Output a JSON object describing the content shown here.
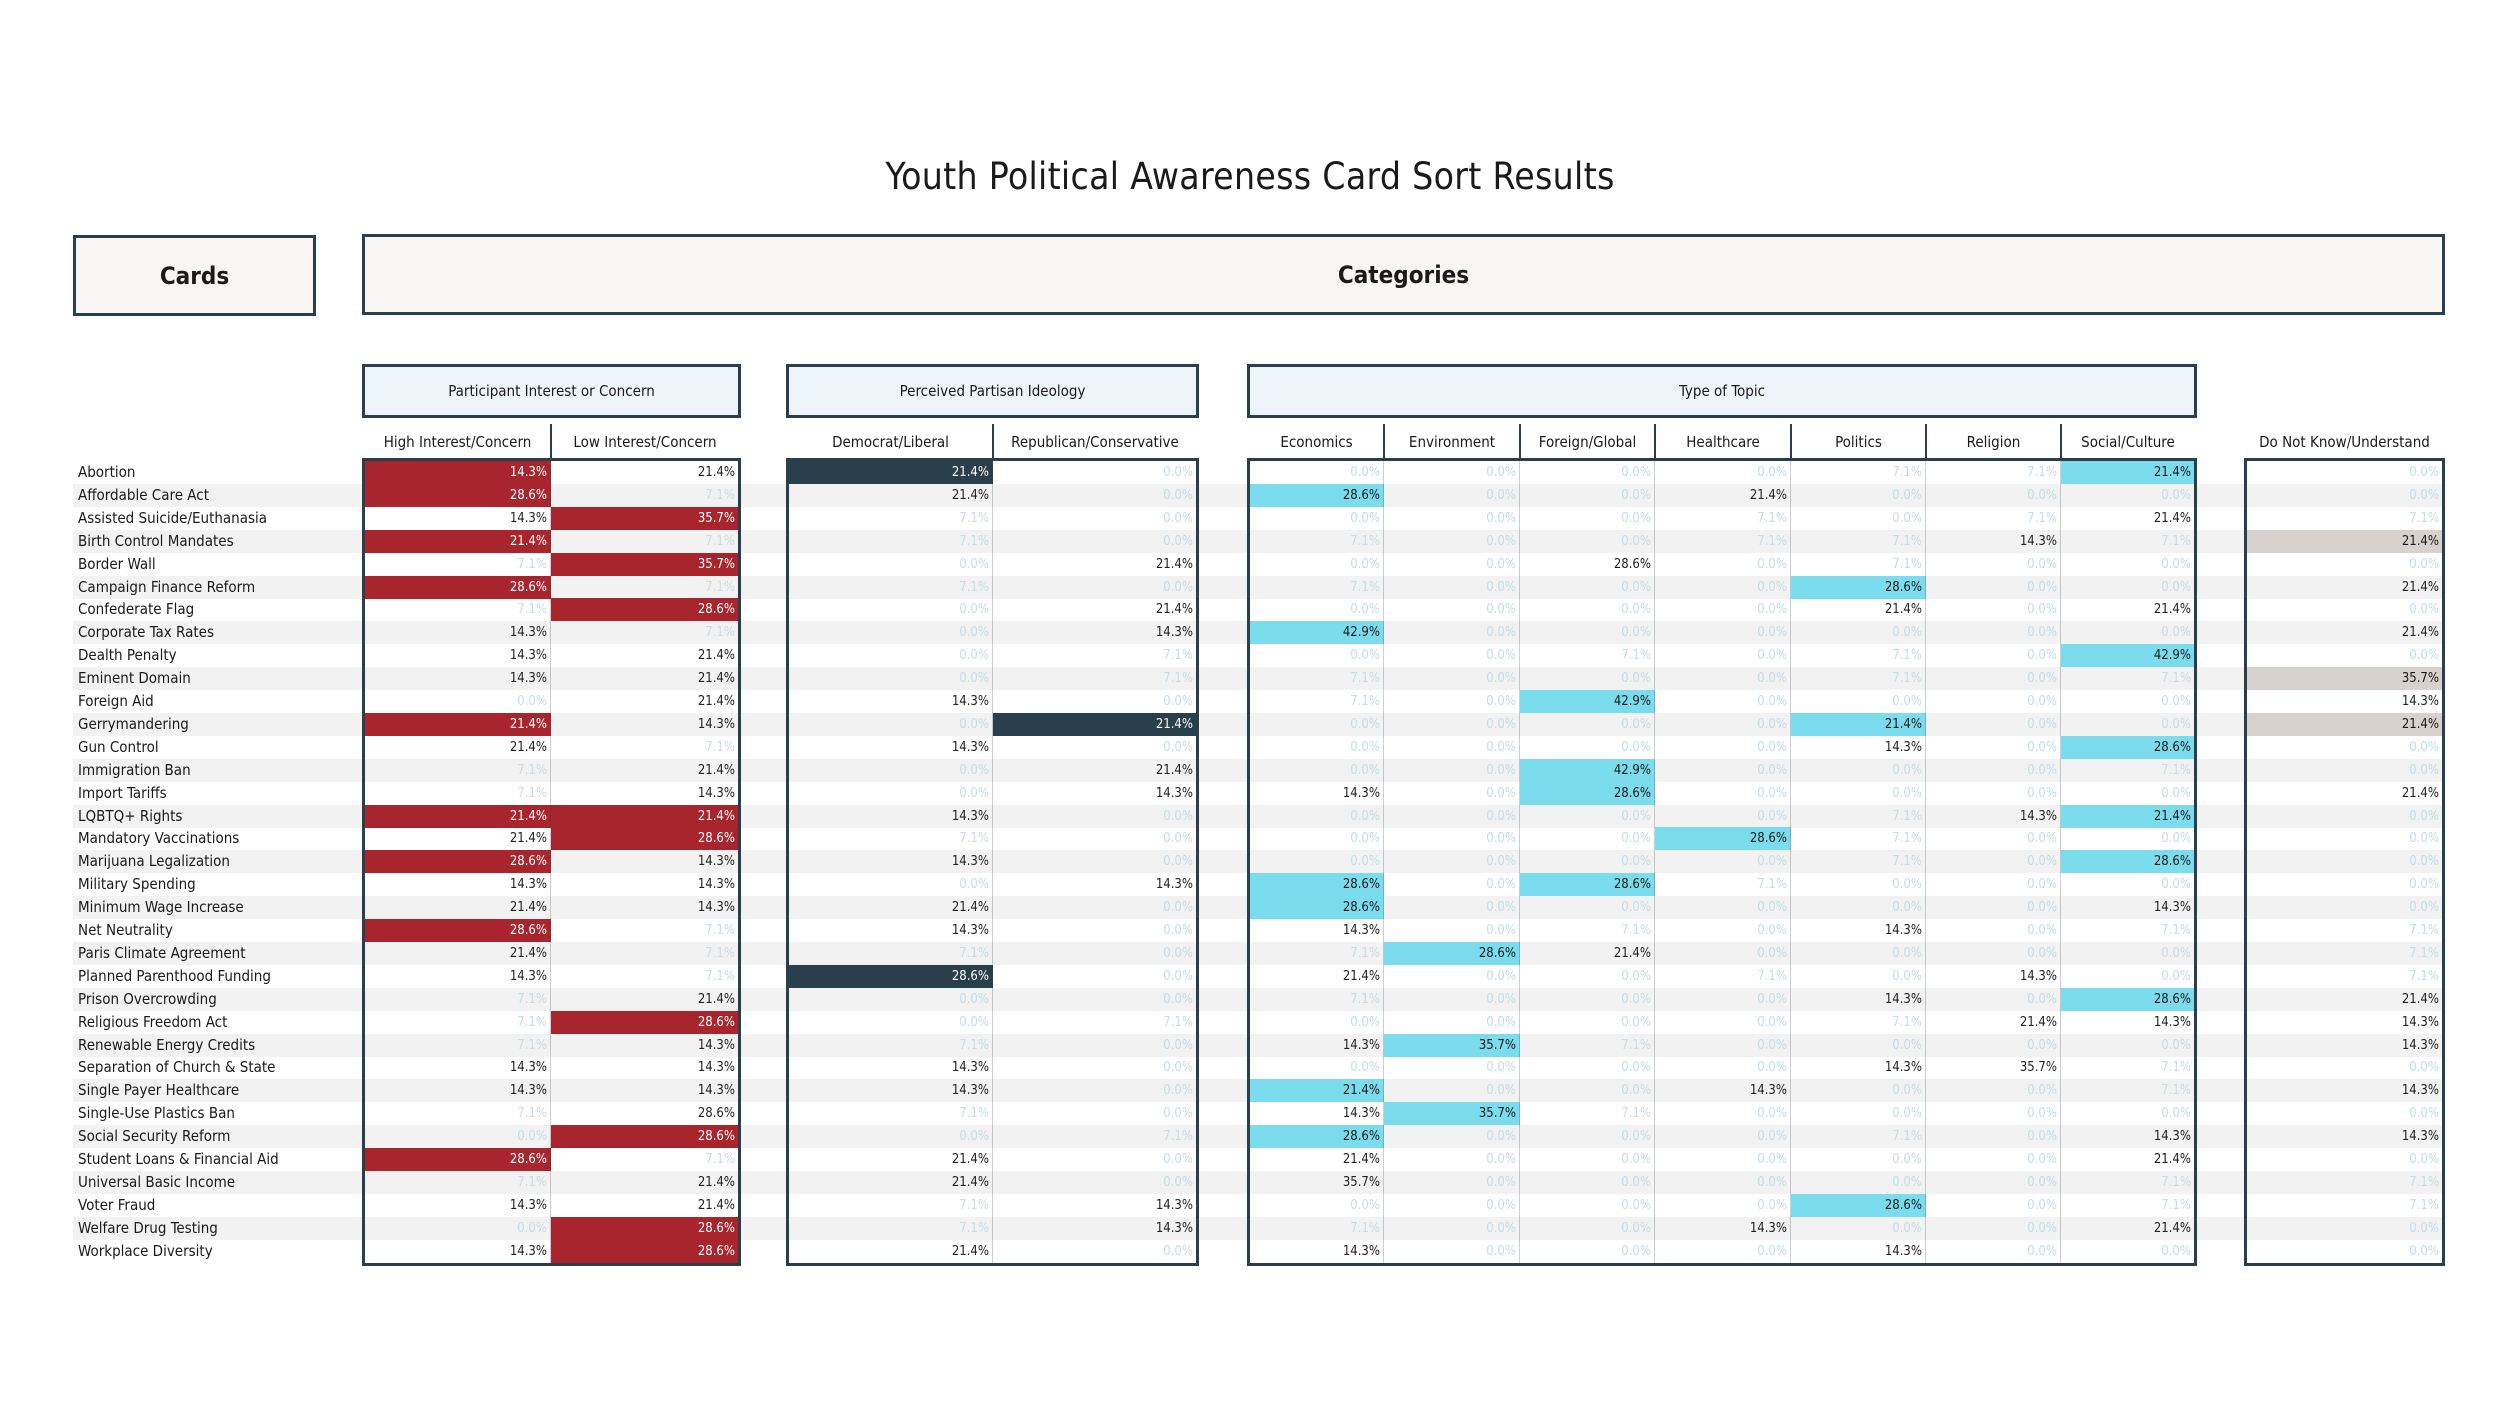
{
  "title": "Youth Political Awareness Card Sort Results",
  "headers": {
    "cards": "Cards",
    "categories": "Categories"
  },
  "colors": {
    "interest": "#a8252e",
    "ideology": "#2a3f4c",
    "topic": "#7adcec",
    "dontknow": "#d8d2ce",
    "frame": "#2a3f4c"
  },
  "chart_data": {
    "type": "table",
    "groups": [
      {
        "name": "Participant Interest or Concern",
        "columns": [
          "High Interest/Concern",
          "Low Interest/Concern"
        ]
      },
      {
        "name": "Perceived Partisan Ideology",
        "columns": [
          "Democrat/Liberal",
          "Republican/Conservative"
        ]
      },
      {
        "name": "Type of Topic",
        "columns": [
          "Economics",
          "Environment",
          "Foreign/Global",
          "Healthcare",
          "Politics",
          "Religion",
          "Social/Culture"
        ]
      },
      {
        "name": "",
        "columns": [
          "Do Not Know/Understand"
        ]
      }
    ],
    "cards": [
      "Abortion",
      "Affordable Care Act",
      "Assisted Suicide/Euthanasia",
      "Birth Control Mandates",
      "Border Wall",
      "Campaign Finance Reform",
      "Confederate Flag",
      "Corporate Tax Rates",
      "Dealth Penalty",
      "Eminent Domain",
      "Foreign Aid",
      "Gerrymandering",
      "Gun Control",
      "Immigration Ban",
      "Import Tariffs",
      "LQBTQ+ Rights",
      "Mandatory Vaccinations",
      "Marijuana Legalization",
      "Military Spending",
      "Minimum Wage Increase",
      "Net Neutrality",
      "Paris Climate Agreement",
      "Planned Parenthood Funding",
      "Prison Overcrowding",
      "Religious Freedom Act",
      "Renewable Energy Credits",
      "Separation of Church & State",
      "Single Payer Healthcare",
      "Single-Use Plastics Ban",
      "Social Security Reform",
      "Student Loans & Financial Aid",
      "Universal Basic Income",
      "Voter Fraud",
      "Welfare Drug Testing",
      "Workplace Diversity"
    ],
    "values": [
      [
        14.3,
        21.4,
        21.4,
        0,
        0,
        0,
        0,
        0,
        7.1,
        7.1,
        21.4,
        0
      ],
      [
        28.6,
        7.1,
        21.4,
        0,
        28.6,
        0,
        0,
        21.4,
        0,
        0,
        0,
        0
      ],
      [
        14.3,
        35.7,
        7.1,
        0,
        0,
        0,
        0,
        7.1,
        0,
        7.1,
        21.4,
        7.1
      ],
      [
        21.4,
        7.1,
        7.1,
        0,
        7.1,
        0,
        0,
        7.1,
        7.1,
        14.3,
        7.1,
        21.4
      ],
      [
        7.1,
        35.7,
        0,
        21.4,
        0,
        0,
        28.6,
        0,
        7.1,
        0,
        0,
        0
      ],
      [
        28.6,
        7.1,
        7.1,
        0,
        7.1,
        0,
        0,
        0,
        28.6,
        0,
        0,
        21.4
      ],
      [
        7.1,
        28.6,
        0,
        21.4,
        0,
        0,
        0,
        0,
        21.4,
        0,
        21.4,
        0
      ],
      [
        14.3,
        7.1,
        0,
        14.3,
        42.9,
        0,
        0,
        0,
        0,
        0,
        0,
        21.4
      ],
      [
        14.3,
        21.4,
        0,
        7.1,
        0,
        0,
        7.1,
        0,
        7.1,
        0,
        42.9,
        0
      ],
      [
        14.3,
        21.4,
        0,
        7.1,
        7.1,
        0,
        0,
        0,
        7.1,
        0,
        7.1,
        35.7
      ],
      [
        0,
        21.4,
        14.3,
        0,
        7.1,
        0,
        42.9,
        0,
        0,
        0,
        0,
        14.3
      ],
      [
        21.4,
        14.3,
        0,
        21.4,
        0,
        0,
        0,
        0,
        21.4,
        0,
        0,
        21.4
      ],
      [
        21.4,
        7.1,
        14.3,
        0,
        0,
        0,
        0,
        0,
        14.3,
        0,
        28.6,
        0
      ],
      [
        7.1,
        21.4,
        0,
        21.4,
        0,
        0,
        42.9,
        0,
        0,
        0,
        7.1,
        0
      ],
      [
        7.1,
        14.3,
        0,
        14.3,
        14.3,
        0,
        28.6,
        0,
        0,
        0,
        0,
        21.4
      ],
      [
        21.4,
        21.4,
        14.3,
        0,
        0,
        0,
        0,
        0,
        7.1,
        14.3,
        21.4,
        0
      ],
      [
        21.4,
        28.6,
        7.1,
        0,
        0,
        0,
        0,
        28.6,
        7.1,
        0,
        0,
        0
      ],
      [
        28.6,
        14.3,
        14.3,
        0,
        0,
        0,
        0,
        0,
        7.1,
        0,
        28.6,
        0
      ],
      [
        14.3,
        14.3,
        0,
        14.3,
        28.6,
        0,
        28.6,
        7.1,
        0,
        0,
        0,
        0
      ],
      [
        21.4,
        14.3,
        21.4,
        0,
        28.6,
        0,
        0,
        0,
        0,
        0,
        14.3,
        0
      ],
      [
        28.6,
        7.1,
        14.3,
        0,
        14.3,
        0,
        7.1,
        0,
        14.3,
        0,
        7.1,
        7.1
      ],
      [
        21.4,
        7.1,
        7.1,
        0,
        7.1,
        28.6,
        21.4,
        0,
        0,
        0,
        0,
        7.1
      ],
      [
        14.3,
        7.1,
        28.6,
        0,
        21.4,
        0,
        0,
        7.1,
        0,
        14.3,
        0,
        7.1
      ],
      [
        7.1,
        21.4,
        0,
        0,
        7.1,
        0,
        0,
        0,
        14.3,
        0,
        28.6,
        21.4
      ],
      [
        7.1,
        28.6,
        0,
        7.1,
        0,
        0,
        0,
        0,
        7.1,
        21.4,
        14.3,
        14.3
      ],
      [
        7.1,
        14.3,
        7.1,
        0,
        14.3,
        35.7,
        7.1,
        0,
        0,
        0,
        0,
        14.3
      ],
      [
        14.3,
        14.3,
        14.3,
        0,
        0,
        0,
        0,
        0,
        14.3,
        35.7,
        7.1,
        0
      ],
      [
        14.3,
        14.3,
        14.3,
        0,
        21.4,
        0,
        0,
        14.3,
        0,
        0,
        7.1,
        14.3
      ],
      [
        7.1,
        28.6,
        7.1,
        0,
        14.3,
        35.7,
        7.1,
        0,
        0,
        0,
        0,
        0
      ],
      [
        0,
        28.6,
        0,
        7.1,
        28.6,
        0,
        0,
        0,
        7.1,
        0,
        14.3,
        14.3
      ],
      [
        28.6,
        7.1,
        21.4,
        0,
        21.4,
        0,
        0,
        0,
        0,
        0,
        21.4,
        0
      ],
      [
        7.1,
        21.4,
        21.4,
        0,
        35.7,
        0,
        0,
        0,
        0,
        0,
        7.1,
        7.1
      ],
      [
        14.3,
        21.4,
        7.1,
        14.3,
        0,
        0,
        0,
        0,
        28.6,
        0,
        7.1,
        7.1
      ],
      [
        0,
        28.6,
        7.1,
        14.3,
        7.1,
        0,
        0,
        14.3,
        0,
        0,
        21.4,
        0
      ],
      [
        14.3,
        28.6,
        21.4,
        0,
        14.3,
        0,
        0,
        0,
        14.3,
        0,
        0,
        0
      ]
    ],
    "highlighted": [
      [
        1,
        0,
        1,
        0,
        0,
        0,
        0,
        0,
        0,
        0,
        1,
        0
      ],
      [
        1,
        0,
        0,
        0,
        1,
        0,
        0,
        0,
        0,
        0,
        0,
        0
      ],
      [
        0,
        1,
        0,
        0,
        0,
        0,
        0,
        0,
        0,
        0,
        0,
        0
      ],
      [
        1,
        0,
        0,
        0,
        0,
        0,
        0,
        0,
        0,
        0,
        0,
        1
      ],
      [
        0,
        1,
        0,
        0,
        0,
        0,
        0,
        0,
        0,
        0,
        0,
        0
      ],
      [
        1,
        0,
        0,
        0,
        0,
        0,
        0,
        0,
        1,
        0,
        0,
        0
      ],
      [
        0,
        1,
        0,
        0,
        0,
        0,
        0,
        0,
        0,
        0,
        0,
        0
      ],
      [
        0,
        0,
        0,
        0,
        1,
        0,
        0,
        0,
        0,
        0,
        0,
        0
      ],
      [
        0,
        0,
        0,
        0,
        0,
        0,
        0,
        0,
        0,
        0,
        1,
        0
      ],
      [
        0,
        0,
        0,
        0,
        0,
        0,
        0,
        0,
        0,
        0,
        0,
        1
      ],
      [
        0,
        0,
        0,
        0,
        0,
        0,
        1,
        0,
        0,
        0,
        0,
        0
      ],
      [
        1,
        0,
        0,
        1,
        0,
        0,
        0,
        0,
        1,
        0,
        0,
        1
      ],
      [
        0,
        0,
        0,
        0,
        0,
        0,
        0,
        0,
        0,
        0,
        1,
        0
      ],
      [
        0,
        0,
        0,
        0,
        0,
        0,
        1,
        0,
        0,
        0,
        0,
        0
      ],
      [
        0,
        0,
        0,
        0,
        0,
        0,
        1,
        0,
        0,
        0,
        0,
        0
      ],
      [
        1,
        1,
        0,
        0,
        0,
        0,
        0,
        0,
        0,
        0,
        1,
        0
      ],
      [
        0,
        1,
        0,
        0,
        0,
        0,
        0,
        1,
        0,
        0,
        0,
        0
      ],
      [
        1,
        0,
        0,
        0,
        0,
        0,
        0,
        0,
        0,
        0,
        1,
        0
      ],
      [
        0,
        0,
        0,
        0,
        1,
        0,
        1,
        0,
        0,
        0,
        0,
        0
      ],
      [
        0,
        0,
        0,
        0,
        1,
        0,
        0,
        0,
        0,
        0,
        0,
        0
      ],
      [
        1,
        0,
        0,
        0,
        0,
        0,
        0,
        0,
        0,
        0,
        0,
        0
      ],
      [
        0,
        0,
        0,
        0,
        0,
        1,
        0,
        0,
        0,
        0,
        0,
        0
      ],
      [
        0,
        0,
        1,
        0,
        0,
        0,
        0,
        0,
        0,
        0,
        0,
        0
      ],
      [
        0,
        0,
        0,
        0,
        0,
        0,
        0,
        0,
        0,
        0,
        1,
        0
      ],
      [
        0,
        1,
        0,
        0,
        0,
        0,
        0,
        0,
        0,
        0,
        0,
        0
      ],
      [
        0,
        0,
        0,
        0,
        0,
        1,
        0,
        0,
        0,
        0,
        0,
        0
      ],
      [
        0,
        0,
        0,
        0,
        0,
        0,
        0,
        0,
        0,
        0,
        0,
        0
      ],
      [
        0,
        0,
        0,
        0,
        1,
        0,
        0,
        0,
        0,
        0,
        0,
        0
      ],
      [
        0,
        0,
        0,
        0,
        0,
        1,
        0,
        0,
        0,
        0,
        0,
        0
      ],
      [
        0,
        1,
        0,
        0,
        1,
        0,
        0,
        0,
        0,
        0,
        0,
        0
      ],
      [
        1,
        0,
        0,
        0,
        0,
        0,
        0,
        0,
        0,
        0,
        0,
        0
      ],
      [
        0,
        0,
        0,
        0,
        0,
        0,
        0,
        0,
        0,
        0,
        0,
        0
      ],
      [
        0,
        0,
        0,
        0,
        0,
        0,
        0,
        0,
        1,
        0,
        0,
        0
      ],
      [
        0,
        1,
        0,
        0,
        0,
        0,
        0,
        0,
        0,
        0,
        0,
        0
      ],
      [
        0,
        1,
        0,
        0,
        0,
        0,
        0,
        0,
        0,
        0,
        0,
        0
      ]
    ],
    "unit": "%"
  }
}
